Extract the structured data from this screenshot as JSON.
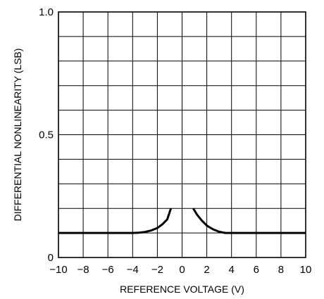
{
  "chart_data": {
    "type": "line",
    "title": "",
    "xlabel": "REFERENCE VOLTAGE (V)",
    "ylabel": "DIFFERENTIAL NONLINEARITY (LSB)",
    "xlim": [
      -10,
      10
    ],
    "ylim": [
      0,
      1.0
    ],
    "x_ticks": [
      -10,
      -8,
      -6,
      -4,
      -2,
      0,
      2,
      4,
      6,
      8,
      10
    ],
    "x_tick_labels": [
      "−10",
      "−8",
      "−6",
      "−4",
      "−2",
      "0",
      "2",
      "4",
      "6",
      "8",
      "10"
    ],
    "y_ticks": [
      0,
      0.5,
      1.0
    ],
    "y_tick_labels": [
      "0",
      "0.5",
      "1.0"
    ],
    "grid": true,
    "grid_x_step": 2,
    "grid_y_step": 0.1,
    "series": [
      {
        "values_x": [
          -10,
          -6,
          -4.0,
          -3.5,
          -3.0,
          -2.5,
          -2.0,
          -1.6,
          -1.2,
          -0.9
        ],
        "values_y": [
          0.1,
          0.1,
          0.1,
          0.101,
          0.104,
          0.11,
          0.12,
          0.135,
          0.155,
          0.2
        ]
      },
      {
        "values_x": [
          0.9,
          1.2,
          1.6,
          2.0,
          2.5,
          3.0,
          3.5,
          4.0,
          6,
          10
        ],
        "values_y": [
          0.2,
          0.175,
          0.15,
          0.13,
          0.115,
          0.105,
          0.1,
          0.1,
          0.1,
          0.1
        ]
      }
    ]
  }
}
